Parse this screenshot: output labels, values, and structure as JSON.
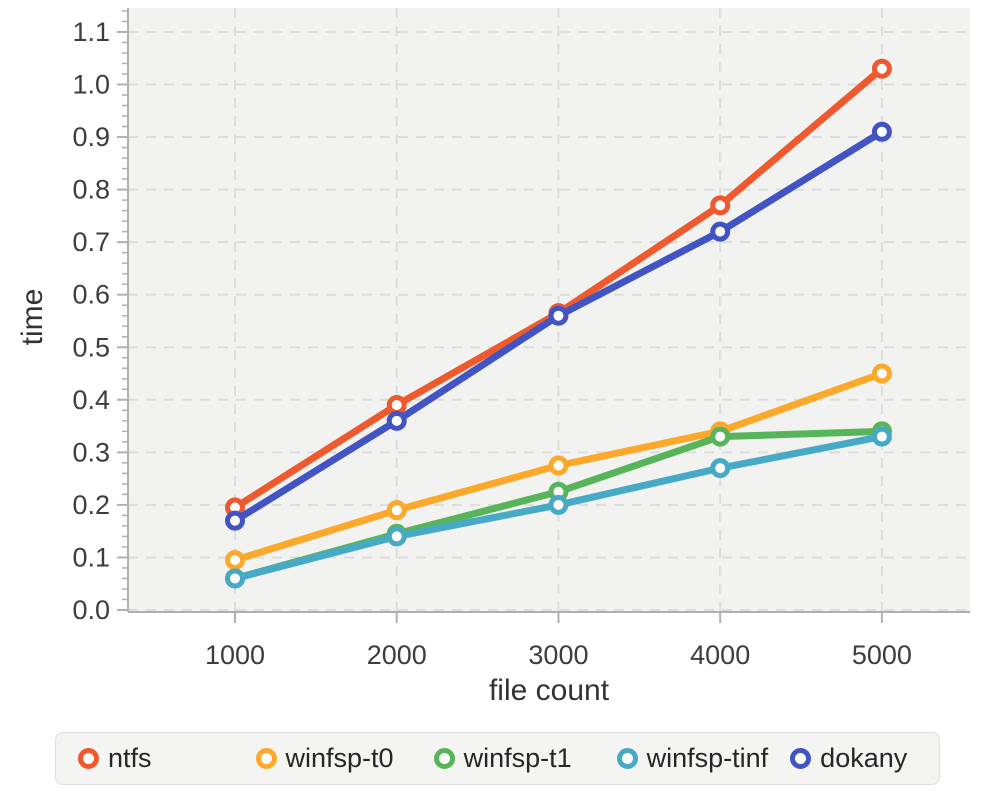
{
  "chart_data": {
    "type": "line",
    "title": "",
    "xlabel": "file count",
    "ylabel": "time",
    "x": [
      1000,
      2000,
      3000,
      4000,
      5000
    ],
    "x_tick_labels": [
      "1000",
      "2000",
      "3000",
      "4000",
      "5000"
    ],
    "y_tick_values": [
      0.0,
      0.1,
      0.2,
      0.3,
      0.4,
      0.5,
      0.6,
      0.7,
      0.8,
      0.9,
      1.0,
      1.1
    ],
    "y_tick_labels": [
      "0.0",
      "0.1",
      "0.2",
      "0.3",
      "0.4",
      "0.5",
      "0.6",
      "0.7",
      "0.8",
      "0.9",
      "1.0",
      "1.1"
    ],
    "ylim": [
      0.0,
      1.1
    ],
    "y_minor_step": 0.02,
    "grid": true,
    "grid_style": "dashed",
    "legend_position": "bottom",
    "series": [
      {
        "name": "ntfs",
        "color": "#ee5a2d",
        "values": [
          0.195,
          0.39,
          0.565,
          0.77,
          1.03
        ]
      },
      {
        "name": "winfsp-t0",
        "color": "#fba82b",
        "values": [
          0.095,
          0.19,
          0.275,
          0.34,
          0.45
        ]
      },
      {
        "name": "winfsp-t1",
        "color": "#57b45a",
        "values": [
          0.06,
          0.145,
          0.225,
          0.33,
          0.34
        ]
      },
      {
        "name": "winfsp-tinf",
        "color": "#46a9c6",
        "values": [
          0.06,
          0.14,
          0.2,
          0.27,
          0.33
        ]
      },
      {
        "name": "dokany",
        "color": "#4253c4",
        "values": [
          0.17,
          0.36,
          0.56,
          0.72,
          0.91
        ]
      }
    ]
  },
  "colors": {
    "plot_bg": "#f2f2f1",
    "grid": "#dcdcda",
    "axis": "#b0b0b0",
    "tick_text": "#3d3d3d",
    "label_text": "#333333",
    "legend_bg": "#f4f4f3",
    "legend_border": "#dedede",
    "legend_text": "#262626",
    "marker_fill": "#ffffff"
  }
}
